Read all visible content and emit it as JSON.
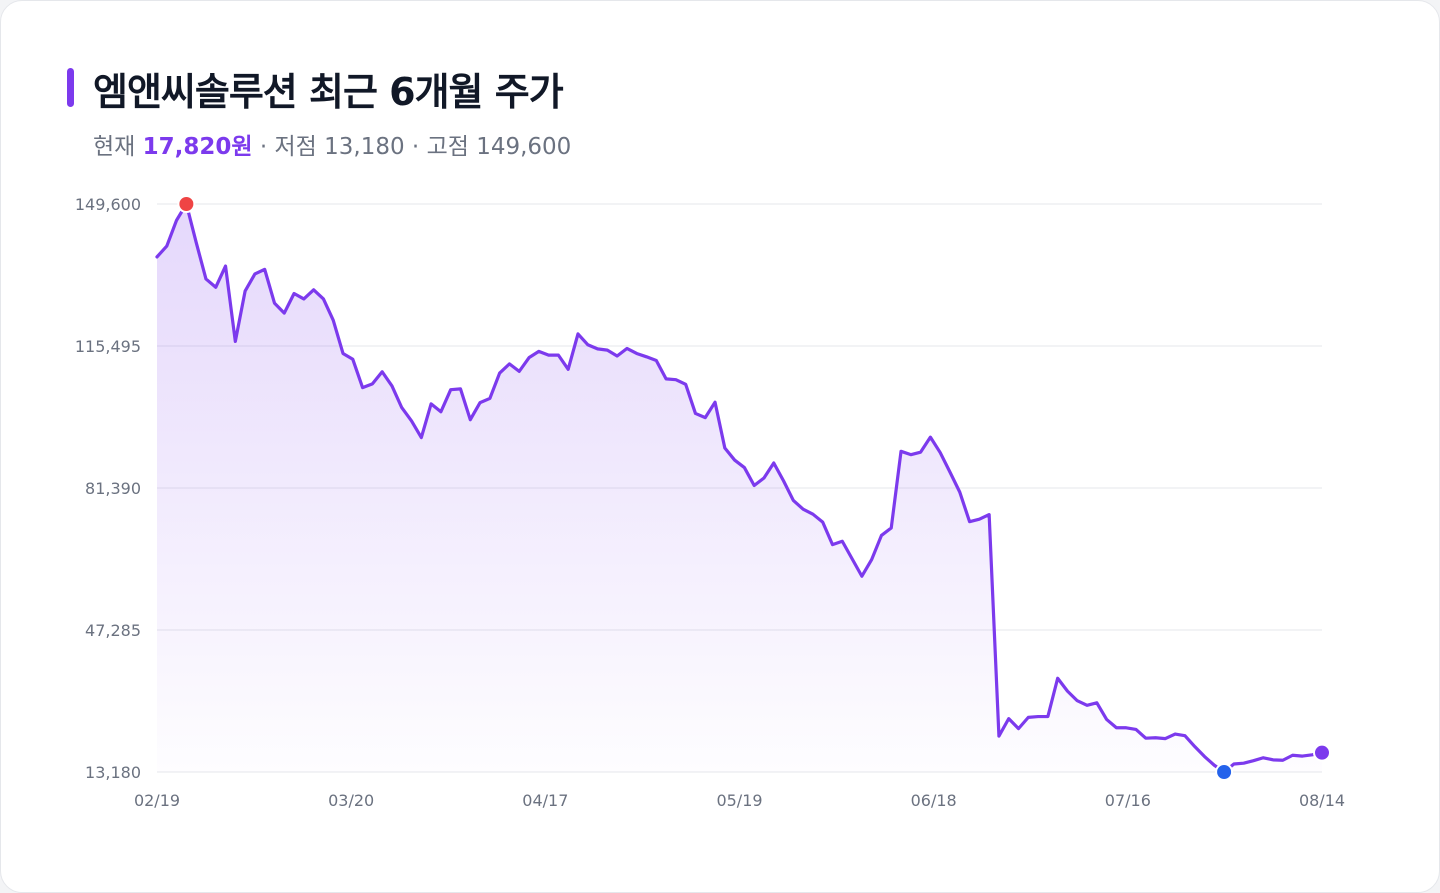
{
  "header": {
    "title": "엠앤씨솔루션 최근 6개월 주가",
    "current_label": "현재",
    "current_value": "17,820원",
    "sep1": " · ",
    "low_label": "저점",
    "low_value": "13,180",
    "sep2": " · ",
    "high_label": "고점",
    "high_value": "149,600"
  },
  "colors": {
    "accent": "#7c3aed",
    "high_marker": "#ef4444",
    "low_marker": "#2563eb",
    "gridline": "#e5e7eb"
  },
  "chart_data": {
    "type": "area",
    "title": "엠앤씨솔루션 최근 6개월 주가",
    "xlabel": "",
    "ylabel": "",
    "ylim": [
      13180,
      149600
    ],
    "y_ticks": [
      {
        "value": 13180,
        "label": "13,180"
      },
      {
        "value": 47285,
        "label": "47,285"
      },
      {
        "value": 81390,
        "label": "81,390"
      },
      {
        "value": 115495,
        "label": "115,495"
      },
      {
        "value": 149600,
        "label": "149,600"
      }
    ],
    "x_ticks": [
      "02/19",
      "03/20",
      "04/17",
      "05/19",
      "06/18",
      "07/16",
      "08/14"
    ],
    "grid": true,
    "markers": {
      "high": 149600,
      "low": 13180,
      "last": 17820
    },
    "series": [
      {
        "values": [
          136900,
          139500,
          145700,
          149600,
          140400,
          131600,
          129600,
          134700,
          116600,
          128700,
          132800,
          133900,
          125800,
          123400,
          128100,
          126800,
          129000,
          126800,
          121700,
          113700,
          112300,
          105500,
          106400,
          109300,
          105900,
          100700,
          97500,
          93500,
          101600,
          99700,
          105000,
          105200,
          97800,
          101900,
          102900,
          109000,
          111200,
          109400,
          112700,
          114200,
          113300,
          113300,
          109900,
          118400,
          115800,
          114800,
          114500,
          113100,
          114900,
          113700,
          112900,
          112000,
          107600,
          107400,
          106300,
          99300,
          98300,
          102000,
          91000,
          88100,
          86300,
          82000,
          83800,
          87400,
          83100,
          78400,
          76300,
          75100,
          73200,
          67800,
          68600,
          64400,
          60200,
          64200,
          70000,
          71800,
          90200,
          89400,
          90000,
          93600,
          89900,
          85200,
          80400,
          73300,
          73900,
          75000,
          21800,
          26000,
          23600,
          26300,
          26500,
          26500,
          35700,
          32600,
          30300,
          29200,
          29800,
          25800,
          23800,
          23800,
          23400,
          21300,
          21400,
          21200,
          22300,
          21900,
          19300,
          16900,
          14800,
          13180,
          15100,
          15300,
          15900,
          16600,
          16100,
          16000,
          17200,
          17000,
          17300,
          17820
        ]
      }
    ]
  }
}
